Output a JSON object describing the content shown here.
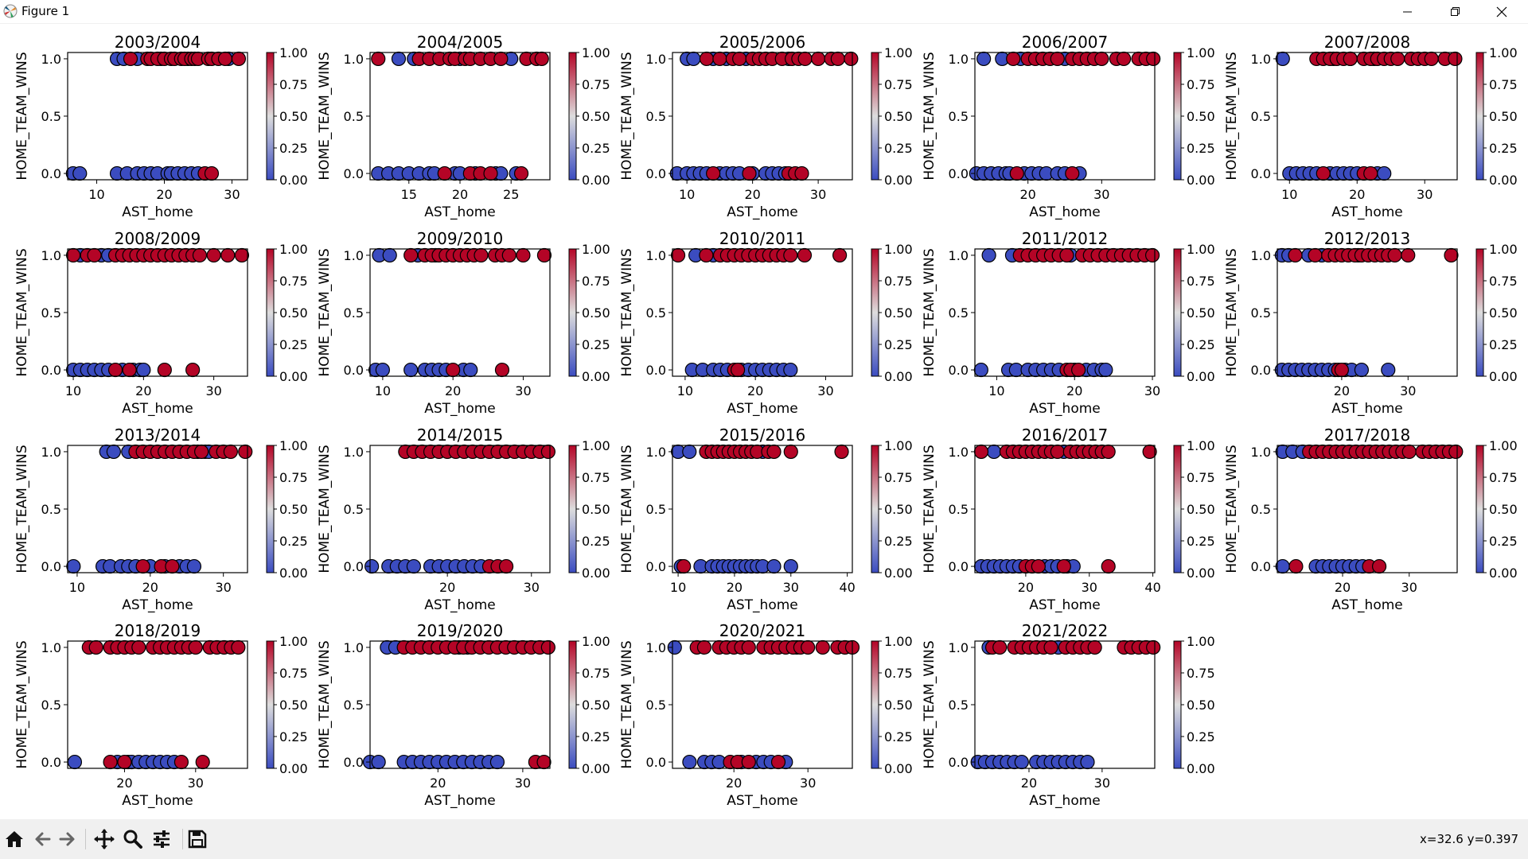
{
  "window": {
    "title": "Figure 1",
    "controls": [
      "minimize",
      "restore",
      "close"
    ]
  },
  "toolbar": {
    "buttons": [
      {
        "name": "home-icon",
        "tooltip": "Reset original view"
      },
      {
        "name": "back-arrow-icon",
        "tooltip": "Back"
      },
      {
        "name": "forward-arrow-icon",
        "tooltip": "Forward"
      },
      {
        "name": "pan-icon",
        "tooltip": "Pan"
      },
      {
        "name": "zoom-icon",
        "tooltip": "Zoom"
      },
      {
        "name": "configure-subplots-icon",
        "tooltip": "Configure subplots"
      },
      {
        "name": "save-icon",
        "tooltip": "Save"
      }
    ],
    "coords": "x=32.6 y=0.397"
  },
  "chart_data": {
    "type": "scatter",
    "layout": "4x5 grid of subplots, last cell empty",
    "xlabel": "AST_home",
    "ylabel": "HOME_TEAM_WINS",
    "y_ticks": [
      "0.0",
      "0.5",
      "1.0"
    ],
    "colorbar": {
      "colormap": "coolwarm",
      "ticks": [
        "0.00",
        "0.25",
        "0.50",
        "0.75",
        "1.00"
      ]
    },
    "marker_color_low": "#3b4cc0",
    "marker_color_high": "#b40426",
    "subplots": [
      {
        "title": "2003/2004",
        "xlim": [
          5.7,
          32.3
        ],
        "xticks": [
          10,
          20,
          30
        ],
        "wins_red": [
          15,
          17.5,
          18,
          19,
          20,
          21,
          21.5,
          22.5,
          23,
          24,
          24.5,
          25,
          26.5,
          27,
          28,
          29,
          31
        ],
        "wins_blue": [
          13,
          14,
          16,
          19.5,
          23.5,
          29.5
        ],
        "losses_red": [
          26,
          27
        ],
        "losses_blue": [
          6.5,
          7.5,
          13,
          14.5,
          16,
          17,
          18,
          19,
          20.5,
          21,
          22,
          23,
          24,
          25
        ]
      },
      {
        "title": "2004/2005",
        "xlim": [
          11.2,
          28.8
        ],
        "xticks": [
          15,
          20,
          25
        ],
        "wins_red": [
          12,
          16,
          17,
          18,
          19,
          19.5,
          20.5,
          21,
          22,
          23,
          24,
          26.5,
          27.5,
          28
        ],
        "wins_blue": [
          14,
          15.5,
          20,
          25
        ],
        "losses_red": [
          18.5,
          21,
          22,
          23,
          26
        ],
        "losses_blue": [
          12,
          13,
          14,
          15,
          16,
          17,
          17.5,
          19.5,
          20,
          21.5,
          23.5,
          24,
          25.5
        ]
      },
      {
        "title": "2005/2006",
        "xlim": [
          7.8,
          35.2
        ],
        "xticks": [
          10,
          20,
          30
        ],
        "wins_red": [
          13,
          15,
          17,
          18,
          20,
          21,
          22,
          23,
          24.5,
          26,
          27,
          28,
          30,
          32,
          33,
          35
        ],
        "wins_blue": [
          10,
          11,
          14,
          16,
          19,
          25.5
        ],
        "losses_red": [
          14,
          19.5,
          25.5,
          26.5,
          27.5
        ],
        "losses_blue": [
          8.5,
          10,
          11,
          12,
          13,
          15,
          16,
          17,
          18,
          20,
          22,
          23,
          24,
          25
        ]
      },
      {
        "title": "2006/2007",
        "xlim": [
          12.8,
          37.2
        ],
        "xticks": [
          20,
          30
        ],
        "wins_red": [
          18,
          20,
          21,
          22,
          23,
          24,
          26,
          27,
          28,
          29,
          30,
          32,
          33,
          35,
          36,
          37
        ],
        "wins_blue": [
          14,
          16.5,
          19,
          25
        ],
        "losses_red": [
          18.5,
          26
        ],
        "losses_blue": [
          13,
          14,
          15,
          16,
          17,
          17.5,
          19.5,
          20.5,
          21.5,
          22.5,
          24,
          25,
          27
        ]
      },
      {
        "title": "2007/2008",
        "xlim": [
          8.2,
          34.8
        ],
        "xticks": [
          10,
          20,
          30
        ],
        "wins_red": [
          14,
          15,
          16,
          17,
          18,
          19,
          21,
          22,
          23,
          24,
          25,
          26,
          28,
          29,
          30,
          31,
          33,
          34.5
        ],
        "wins_blue": [
          9,
          16.5,
          19,
          22.5
        ],
        "losses_red": [
          15,
          21,
          22
        ],
        "losses_blue": [
          10,
          11,
          12,
          13,
          14,
          16,
          17,
          18,
          19,
          20,
          23,
          24
        ]
      },
      {
        "title": "2008/2009",
        "xlim": [
          9.2,
          34.8
        ],
        "xticks": [
          10,
          20,
          30
        ],
        "wins_red": [
          10,
          12,
          13,
          16,
          17,
          18,
          19,
          20,
          21,
          22,
          23,
          24,
          25,
          26,
          27,
          28,
          30,
          32,
          34
        ],
        "wins_blue": [
          11,
          14,
          15
        ],
        "losses_red": [
          16,
          18,
          23,
          27
        ],
        "losses_blue": [
          10,
          11,
          12,
          13,
          14,
          15,
          17,
          18.5,
          19.5,
          20
        ]
      },
      {
        "title": "2009/2010",
        "xlim": [
          8.2,
          33.8
        ],
        "xticks": [
          10,
          20,
          30
        ],
        "wins_red": [
          14,
          16,
          17,
          18,
          19,
          20,
          21,
          22,
          23,
          24,
          26,
          27,
          28,
          30,
          33
        ],
        "wins_blue": [
          9.5,
          11,
          15,
          17.5
        ],
        "losses_red": [
          20,
          27
        ],
        "losses_blue": [
          9,
          10,
          14,
          16,
          17,
          18,
          19,
          21.5,
          22.5
        ]
      },
      {
        "title": "2010/2011",
        "xlim": [
          8.2,
          33.8
        ],
        "xticks": [
          10,
          20,
          30
        ],
        "wins_red": [
          9,
          13,
          15,
          16,
          17,
          18,
          19,
          20,
          21,
          22,
          23,
          24,
          25,
          27,
          32
        ],
        "wins_blue": [
          11.5,
          14
        ],
        "losses_red": [
          17,
          17.5
        ],
        "losses_blue": [
          11,
          12.5,
          14,
          15,
          16,
          18,
          19,
          20,
          21,
          22,
          23,
          24,
          25
        ]
      },
      {
        "title": "2011/2012",
        "xlim": [
          7.2,
          30.3
        ],
        "xticks": [
          10,
          20,
          30
        ],
        "wins_red": [
          13,
          14,
          15,
          16,
          17,
          18,
          19,
          21,
          22,
          23,
          24,
          25,
          26,
          27,
          28,
          29,
          30
        ],
        "wins_blue": [
          9,
          12,
          19.5
        ],
        "losses_red": [
          19,
          19.5,
          20.5
        ],
        "losses_blue": [
          8,
          11.5,
          12.5,
          14,
          15,
          16,
          17,
          18,
          20,
          21.5,
          22.5,
          23.5,
          24
        ]
      },
      {
        "title": "2012/2013",
        "xlim": [
          10.3,
          37.4
        ],
        "xticks": [
          20,
          30
        ],
        "wins_red": [
          13,
          16,
          18,
          19,
          20,
          21,
          22,
          23,
          24,
          25,
          26,
          27,
          28,
          30,
          36.5
        ],
        "wins_blue": [
          11,
          12,
          15,
          17,
          22.5
        ],
        "losses_red": [
          19.5,
          20
        ],
        "losses_blue": [
          11,
          12,
          13,
          14,
          15,
          16,
          17,
          18,
          19,
          20.5,
          21.5,
          23,
          27
        ]
      },
      {
        "title": "2013/2014",
        "xlim": [
          8.7,
          33.3
        ],
        "xticks": [
          10,
          20,
          30
        ],
        "wins_red": [
          18,
          19,
          20,
          21,
          22,
          23,
          24,
          25,
          26,
          27,
          29,
          30,
          31,
          33
        ],
        "wins_blue": [
          14,
          15,
          17,
          26.5,
          27.5,
          28
        ],
        "losses_red": [
          19,
          21.5,
          23
        ],
        "losses_blue": [
          9.5,
          13.5,
          14.5,
          16,
          17,
          18,
          20,
          22,
          24,
          25,
          26
        ]
      },
      {
        "title": "2014/2015",
        "xlim": [
          10.8,
          32.2
        ],
        "xticks": [
          20,
          30
        ],
        "wins_red": [
          15,
          16,
          17,
          18,
          19,
          20,
          21,
          22,
          23,
          24,
          25,
          26,
          27,
          28,
          29,
          30,
          31,
          32
        ],
        "wins_blue": [],
        "losses_red": [
          25,
          26,
          27
        ],
        "losses_blue": [
          11,
          13,
          14,
          15,
          16,
          18,
          19,
          20,
          21,
          22,
          23,
          24
        ]
      },
      {
        "title": "2015/2016",
        "xlim": [
          9.0,
          40.9
        ],
        "xticks": [
          10,
          20,
          30,
          40
        ],
        "wins_red": [
          15,
          16,
          17,
          18,
          19,
          20,
          21,
          22,
          23,
          24,
          26,
          27,
          30,
          39
        ],
        "wins_blue": [
          10,
          12,
          25
        ],
        "losses_red": [
          11
        ],
        "losses_blue": [
          10.5,
          14,
          16,
          17,
          18,
          19,
          20,
          21,
          22,
          23,
          24,
          25,
          27,
          30
        ]
      },
      {
        "title": "2016/2017",
        "xlim": [
          12.0,
          40.3
        ],
        "xticks": [
          20,
          30,
          40
        ],
        "wins_red": [
          13,
          17,
          18,
          19,
          20,
          21,
          22,
          23,
          24,
          25,
          27,
          28,
          29,
          30,
          31,
          32,
          33,
          39.5
        ],
        "wins_blue": [
          15,
          26
        ],
        "losses_red": [
          20,
          21,
          22,
          26,
          33
        ],
        "losses_blue": [
          13,
          14,
          15,
          16,
          17,
          18,
          19,
          23,
          24,
          25,
          26.5,
          27.5
        ]
      },
      {
        "title": "2017/2018",
        "xlim": [
          10.2,
          37.2
        ],
        "xticks": [
          20,
          30
        ],
        "wins_red": [
          15,
          16,
          17,
          18,
          19,
          20,
          21,
          22,
          23,
          24,
          25,
          26,
          27,
          28,
          29,
          30,
          32,
          33,
          34,
          35,
          36,
          37
        ],
        "wins_blue": [
          11,
          12.5,
          14
        ],
        "losses_red": [
          13,
          24,
          25.5
        ],
        "losses_blue": [
          11,
          16,
          17,
          18,
          19,
          20,
          21,
          22,
          23
        ]
      },
      {
        "title": "2018/2019",
        "xlim": [
          12.0,
          37.3
        ],
        "xticks": [
          20,
          30
        ],
        "wins_red": [
          15,
          16,
          18,
          19,
          20,
          21,
          22,
          24,
          25,
          26,
          27,
          28,
          29,
          30,
          32,
          33,
          34,
          35,
          36
        ],
        "wins_blue": [],
        "losses_red": [
          18,
          20,
          28,
          31
        ],
        "losses_blue": [
          13,
          19,
          20.5,
          21,
          22,
          23,
          24,
          25,
          26,
          27
        ]
      },
      {
        "title": "2019/2020",
        "xlim": [
          12.0,
          33.2
        ],
        "xticks": [
          20,
          30
        ],
        "wins_red": [
          16,
          17,
          18,
          19,
          20,
          21,
          22,
          23,
          24,
          25,
          26,
          27,
          28,
          29,
          30,
          31,
          32,
          33
        ],
        "wins_blue": [
          14,
          15,
          22.5,
          23.5
        ],
        "losses_red": [
          31.5,
          32.5
        ],
        "losses_blue": [
          12,
          13,
          16,
          17,
          18,
          19,
          20,
          21,
          22,
          23,
          24,
          25,
          26,
          27
        ]
      },
      {
        "title": "2020/2021",
        "xlim": [
          11.7,
          36.0
        ],
        "xticks": [
          20,
          30
        ],
        "wins_red": [
          15,
          16,
          18,
          19,
          20,
          21,
          22,
          24,
          25,
          26,
          27,
          28,
          29,
          30,
          32,
          34,
          35,
          36
        ],
        "wins_blue": [
          12,
          28.5
        ],
        "losses_red": [
          19.5,
          20.5,
          22,
          26
        ],
        "losses_blue": [
          14,
          16,
          17,
          18,
          21,
          23,
          24,
          25,
          27
        ]
      },
      {
        "title": "2021/2022",
        "xlim": [
          12.6,
          37.2
        ],
        "xticks": [
          20,
          30
        ],
        "wins_red": [
          15,
          16,
          18,
          19,
          20,
          21,
          22,
          23,
          25,
          26,
          27,
          28,
          29,
          33,
          34,
          35,
          36,
          37
        ],
        "wins_blue": [
          14.5,
          24
        ],
        "losses_red": [],
        "losses_blue": [
          13,
          14,
          15,
          16,
          17,
          18,
          19,
          21,
          22,
          23,
          24,
          25,
          26,
          27,
          28
        ]
      }
    ]
  }
}
